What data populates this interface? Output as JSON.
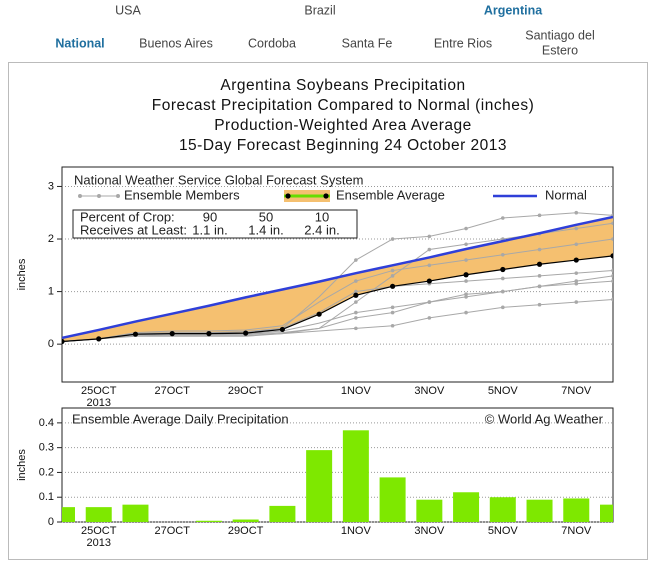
{
  "nav": {
    "countries": [
      "USA",
      "Brazil",
      "Argentina"
    ],
    "regions": [
      "National",
      "Buenos Aires",
      "Cordoba",
      "Santa Fe",
      "Entre Rios",
      "Santiago del",
      "Estero"
    ]
  },
  "chart_data": [
    {
      "type": "line",
      "title": [
        "Argentina Soybeans Precipitation",
        "Forecast Precipitation Compared to Normal (inches)",
        "Production-Weighted Area Average",
        "15-Day Forecast Beginning 24 October 2013"
      ],
      "ylabel": "inches",
      "source_note": "National Weather Service Global Forecast System",
      "crop_table": {
        "rows": [
          [
            "Percent of Crop:",
            90,
            50,
            10
          ],
          [
            "Receives at Least:",
            "1.1 in.",
            "1.4 in.",
            "2.4 in."
          ]
        ]
      },
      "categories": [
        null,
        "25OCT",
        null,
        "27OCT",
        null,
        "29OCT",
        null,
        null,
        "1NOV",
        null,
        "3NOV",
        null,
        "5NOV",
        null,
        "7NOV",
        null
      ],
      "year_label": "2013",
      "ylim": [
        -0.72,
        3.37
      ],
      "yticks": [
        0,
        1,
        2,
        3
      ],
      "grid": true,
      "members": {
        "name": "Ensemble Members",
        "color": "#a8a8a8",
        "values": [
          [
            0.05,
            0.1,
            0.15,
            0.15,
            0.15,
            0.15,
            0.2,
            0.3,
            0.8,
            1.3,
            1.8,
            1.9,
            2.0,
            2.1,
            2.2,
            2.3
          ],
          [
            0.05,
            0.1,
            0.2,
            0.22,
            0.22,
            0.24,
            0.3,
            0.9,
            1.6,
            2.0,
            2.05,
            2.2,
            2.4,
            2.45,
            2.5,
            2.45
          ],
          [
            0.05,
            0.1,
            0.18,
            0.18,
            0.18,
            0.19,
            0.22,
            0.3,
            0.5,
            0.6,
            0.8,
            0.95,
            1.0,
            1.1,
            1.15,
            1.2
          ],
          [
            0.05,
            0.1,
            0.2,
            0.2,
            0.2,
            0.2,
            0.25,
            0.4,
            0.6,
            0.7,
            0.8,
            0.9,
            1.0,
            1.1,
            1.2,
            1.3
          ],
          [
            0.05,
            0.1,
            0.22,
            0.25,
            0.25,
            0.27,
            0.35,
            0.8,
            1.2,
            1.4,
            1.5,
            1.6,
            1.7,
            1.8,
            1.9,
            2.0
          ],
          [
            0.05,
            0.1,
            0.16,
            0.17,
            0.17,
            0.17,
            0.2,
            0.25,
            0.3,
            0.35,
            0.5,
            0.6,
            0.7,
            0.75,
            0.8,
            0.85
          ],
          [
            0.05,
            0.1,
            0.2,
            0.21,
            0.21,
            0.22,
            0.3,
            0.6,
            1.0,
            1.1,
            1.15,
            1.2,
            1.25,
            1.3,
            1.35,
            1.4
          ]
        ]
      },
      "series": [
        {
          "name": "Ensemble Average",
          "color": "#000000",
          "legend_color": "#66dd00",
          "fill": "#f5c070",
          "values": [
            0.05,
            0.1,
            0.19,
            0.2,
            0.2,
            0.21,
            0.28,
            0.57,
            0.93,
            1.1,
            1.2,
            1.32,
            1.42,
            1.52,
            1.6,
            1.68
          ]
        },
        {
          "name": "Normal",
          "color": "#2f3fd8",
          "values": [
            0.12,
            0.27,
            0.43,
            0.58,
            0.73,
            0.89,
            1.04,
            1.19,
            1.35,
            1.5,
            1.65,
            1.81,
            1.96,
            2.11,
            2.27,
            2.42
          ]
        }
      ]
    },
    {
      "type": "bar",
      "title": "Ensemble Average Daily Precipitation",
      "credit": "© World Ag Weather",
      "ylabel": "inches",
      "categories": [
        null,
        "25OCT",
        null,
        "27OCT",
        null,
        "29OCT",
        null,
        null,
        "1NOV",
        null,
        "3NOV",
        null,
        "5NOV",
        null,
        "7NOV",
        null
      ],
      "year_label": "2013",
      "values": [
        0.06,
        0.06,
        0.07,
        0,
        0.005,
        0.01,
        0.065,
        0.29,
        0.37,
        0.18,
        0.09,
        0.12,
        0.1,
        0.09,
        0.095,
        0.07
      ],
      "color": "#7ee800",
      "ylim": [
        0,
        0.46
      ],
      "yticks": [
        0,
        0.1,
        0.2,
        0.3,
        0.4
      ],
      "grid": true
    }
  ]
}
